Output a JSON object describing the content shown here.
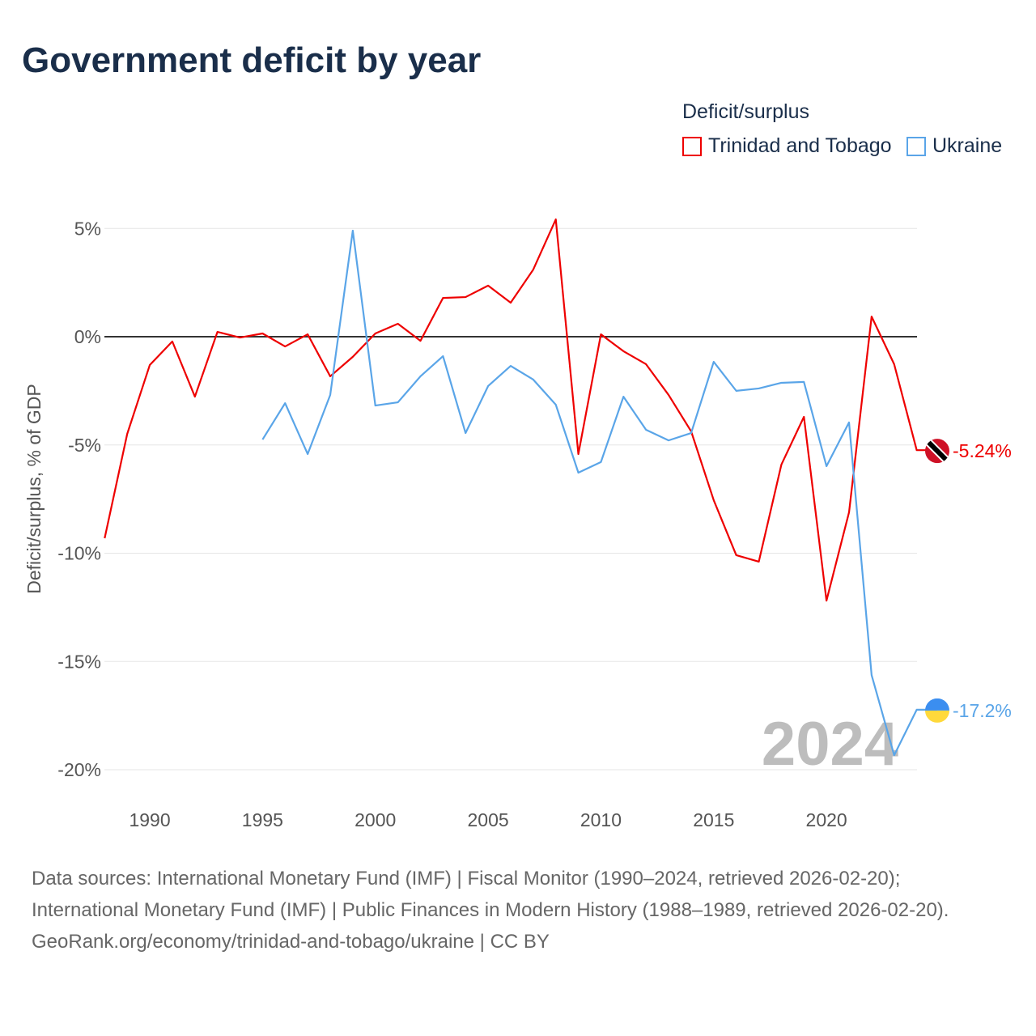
{
  "title": "Government deficit by year",
  "legend": {
    "title": "Deficit/surplus",
    "items": [
      {
        "label": "Trinidad and Tobago",
        "color": "#ee0000"
      },
      {
        "label": "Ukraine",
        "color": "#5aa5e8"
      }
    ]
  },
  "year_watermark": "2024",
  "footer": {
    "sources": "Data sources: International Monetary Fund (IMF) | Fiscal Monitor (1990–2024, retrieved 2026-02-20); International Monetary Fund (IMF) | Public Finances in Modern History (1988–1989, retrieved 2026-02-20).",
    "credit": "GeoRank.org/economy/trinidad-and-tobago/ukraine | CC BY"
  },
  "chart_data": {
    "type": "line",
    "title": "Government deficit by year",
    "xlabel": "",
    "ylabel": "Deficit/surplus, % of GDP",
    "xlim": [
      1988,
      2024
    ],
    "ylim": [
      -20,
      5
    ],
    "xticks": [
      1990,
      1995,
      2000,
      2005,
      2010,
      2015,
      2020
    ],
    "yticks": [
      {
        "v": 5,
        "label": "5%"
      },
      {
        "v": 0,
        "label": "0%"
      },
      {
        "v": -5,
        "label": "-5%"
      },
      {
        "v": -10,
        "label": "-10%"
      },
      {
        "v": -15,
        "label": "-15%"
      },
      {
        "v": -20,
        "label": "-20%"
      }
    ],
    "grid": true,
    "legend_position": "top-right",
    "series": [
      {
        "name": "Trinidad and Tobago",
        "color": "#ee0000",
        "end_label": "-5.24%",
        "x": [
          1988,
          1989,
          1990,
          1991,
          1992,
          1993,
          1994,
          1995,
          1996,
          1997,
          1998,
          1999,
          2000,
          2001,
          2002,
          2003,
          2004,
          2005,
          2006,
          2007,
          2008,
          2009,
          2010,
          2011,
          2012,
          2013,
          2014,
          2015,
          2016,
          2017,
          2018,
          2019,
          2020,
          2021,
          2022,
          2023,
          2024
        ],
        "values": [
          -9.31,
          -4.49,
          -1.31,
          -0.22,
          -2.77,
          0.22,
          -0.04,
          0.15,
          -0.45,
          0.11,
          -1.83,
          -0.93,
          0.15,
          0.6,
          -0.19,
          1.79,
          1.83,
          2.36,
          1.57,
          3.1,
          5.42,
          -5.42,
          0.11,
          -0.67,
          -1.27,
          -2.69,
          -4.37,
          -7.55,
          -10.09,
          -10.39,
          -5.91,
          -3.7,
          -12.19,
          -8.11,
          0.93,
          -1.27,
          -5.24
        ]
      },
      {
        "name": "Ukraine",
        "color": "#5aa5e8",
        "end_label": "-17.2%",
        "x": [
          1995,
          1996,
          1997,
          1998,
          1999,
          2000,
          2001,
          2002,
          2003,
          2004,
          2005,
          2006,
          2007,
          2008,
          2009,
          2010,
          2011,
          2012,
          2013,
          2014,
          2015,
          2016,
          2017,
          2018,
          2019,
          2020,
          2021,
          2022,
          2023,
          2024
        ],
        "values": [
          -4.75,
          -3.07,
          -5.42,
          -2.69,
          4.9,
          -3.18,
          -3.03,
          -1.83,
          -0.9,
          -4.45,
          -2.28,
          -1.35,
          -1.98,
          -3.14,
          -6.28,
          -5.79,
          -2.77,
          -4.3,
          -4.79,
          -4.45,
          -1.16,
          -2.5,
          -2.39,
          -2.13,
          -2.09,
          -5.98,
          -3.96,
          -15.63,
          -19.33,
          -17.23
        ]
      }
    ]
  }
}
